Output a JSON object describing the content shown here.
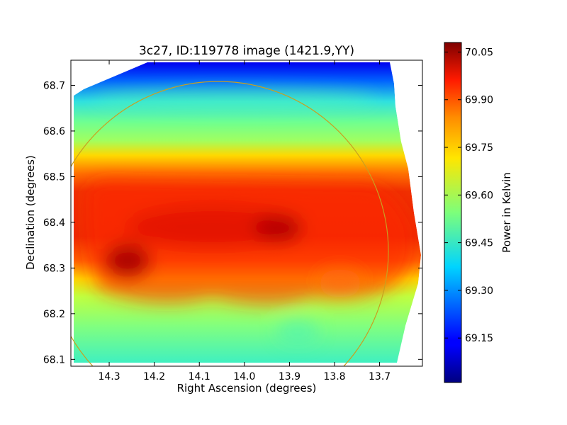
{
  "chart_data": {
    "type": "heatmap",
    "title": "3c27, ID:119778 image (1421.9,YY)",
    "xlabel": "Right Ascension (degrees)",
    "ylabel": "Declination (degrees)",
    "x_reversed": true,
    "xlim": [
      14.385,
      13.605
    ],
    "ylim": [
      68.085,
      68.755
    ],
    "x_ticks": [
      14.3,
      14.2,
      14.1,
      14.0,
      13.9,
      13.8,
      13.7
    ],
    "x_tick_labels": [
      "14.3",
      "14.2",
      "14.1",
      "14.0",
      "13.9",
      "13.8",
      "13.7"
    ],
    "y_ticks": [
      68.1,
      68.2,
      68.3,
      68.4,
      68.5,
      68.6,
      68.7
    ],
    "y_tick_labels": [
      "68.1",
      "68.2",
      "68.3",
      "68.4",
      "68.5",
      "68.6",
      "68.7"
    ],
    "colorbar": {
      "label": "Power in Kelvin",
      "range": [
        69.01,
        70.08
      ],
      "colormap": "jet",
      "ticks": [
        69.15,
        69.3,
        69.45,
        69.6,
        69.75,
        69.9,
        70.05
      ],
      "tick_labels": [
        "69.15",
        "69.30",
        "69.45",
        "69.60",
        "69.75",
        "69.90",
        "70.05"
      ]
    },
    "field_levels": {
      "top_edge": 69.08,
      "upper_band": 69.55,
      "core_band": 69.95,
      "core_peaks": 70.05,
      "lower_band": 69.55,
      "bottom_edge": 69.45
    },
    "circle_overlay": {
      "color": "#c8a020",
      "center": [
        14.05,
        68.31
      ],
      "radius_deg_dec": 0.37
    },
    "grid": false
  }
}
